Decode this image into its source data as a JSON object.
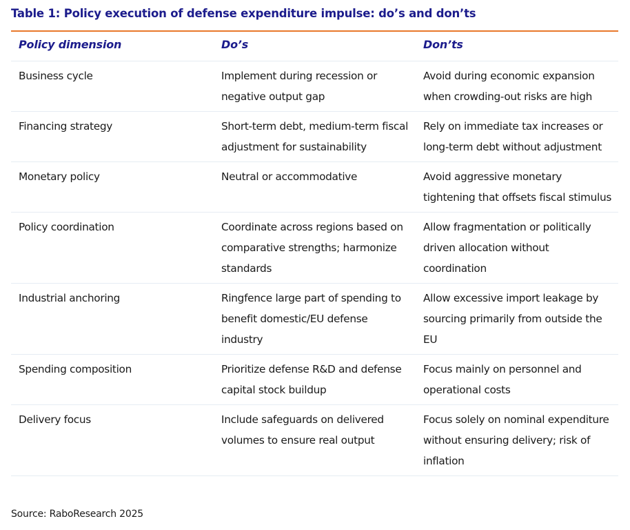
{
  "title": "Table 1: Policy execution of defense expenditure impulse: do’s and don’ts",
  "colors": {
    "title": "#1c1c8c",
    "header": "#1c1c8c",
    "accent_rule": "#e8782a",
    "row_divider": "#e6ecf3"
  },
  "table": {
    "headers": [
      "Policy dimension",
      "Do’s",
      "Don’ts"
    ],
    "rows": [
      {
        "dimension": "Business cycle",
        "dos": "Implement during recession or negative output gap",
        "donts": "Avoid during economic expansion when crowding-out risks are high"
      },
      {
        "dimension": "Financing strategy",
        "dos": "Short-term debt, medium-term fiscal adjustment for sustainability",
        "donts": "Rely on immediate tax increases or long-term debt without adjustment"
      },
      {
        "dimension": "Monetary policy",
        "dos": "Neutral or accommodative",
        "donts": "Avoid aggressive monetary tightening that offsets fiscal stimulus"
      },
      {
        "dimension": "Policy coordination",
        "dos": "Coordinate across regions based on comparative strengths; harmonize standards",
        "donts": "Allow fragmentation or politically driven allocation without coordination"
      },
      {
        "dimension": "Industrial anchoring",
        "dos": "Ringfence large part of spending to benefit domestic/EU defense industry",
        "donts": "Allow excessive import leakage by sourcing primarily from outside the EU"
      },
      {
        "dimension": "Spending composition",
        "dos": "Prioritize defense R&D and defense capital stock buildup",
        "donts": "Focus mainly on personnel and operational costs"
      },
      {
        "dimension": "Delivery focus",
        "dos": "Include safeguards on delivered volumes to ensure real output",
        "donts": "Focus solely on nominal expenditure without ensuring delivery; risk of inflation"
      }
    ]
  },
  "source": "Source: RaboResearch 2025"
}
